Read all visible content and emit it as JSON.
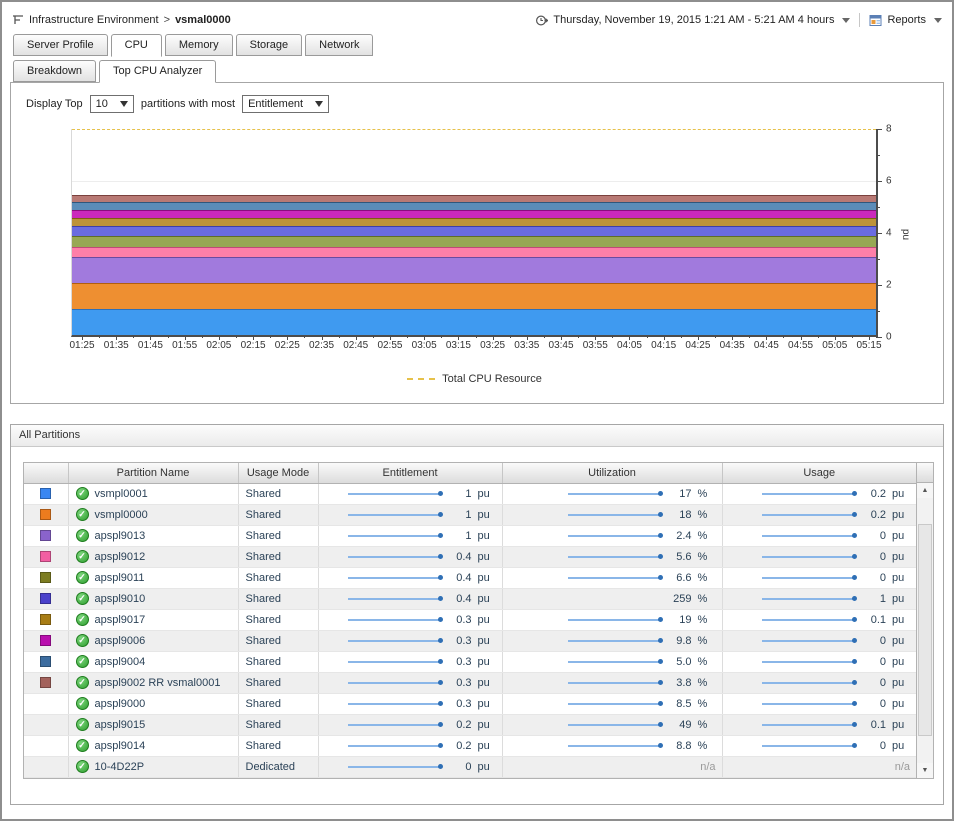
{
  "header": {
    "breadcrumb": {
      "root": "Infrastructure Environment",
      "separator": ">",
      "current": "vsmal0000"
    },
    "timerange_label": "Thursday, November 19, 2015 1:21 AM - 5:21 AM 4 hours",
    "reports_label": "Reports"
  },
  "icons": {
    "breadcrumb": "topology-icon",
    "timerange": "time-range-icon",
    "reports": "report-icon",
    "dropdown_glyph": "▼",
    "check_glyph": "✓",
    "scroll_up_glyph": "▲",
    "scroll_down_glyph": "▼"
  },
  "tabs": {
    "active": "CPU",
    "items": [
      "Server Profile",
      "CPU",
      "Memory",
      "Storage",
      "Network"
    ]
  },
  "subtabs": {
    "active": "Top CPU Analyzer",
    "items": [
      "Breakdown",
      "Top CPU Analyzer"
    ]
  },
  "controls": {
    "prefix_label": "Display Top",
    "top_count": "10",
    "middle_label": "partitions with most",
    "metric": "Entitlement"
  },
  "chart_data": {
    "type": "area",
    "stacked": true,
    "ylabel": "pu",
    "ylim": [
      0,
      8
    ],
    "yticks": [
      0,
      2,
      4,
      6,
      8
    ],
    "grid": "major-horizontal",
    "legend_position": "bottom",
    "x": [
      "01:25",
      "01:35",
      "01:45",
      "01:55",
      "02:05",
      "02:15",
      "02:25",
      "02:35",
      "02:45",
      "02:55",
      "03:05",
      "03:15",
      "03:25",
      "03:35",
      "03:45",
      "03:55",
      "04:05",
      "04:15",
      "04:25",
      "04:35",
      "04:45",
      "04:55",
      "05:05",
      "05:15"
    ],
    "reference_line": {
      "label": "Total CPU Resource",
      "value": 8,
      "style": "dashed",
      "color": "#e6c14a"
    },
    "series": [
      {
        "name": "vsmpl0001",
        "value": 1.0,
        "color": "#3f9af0",
        "edge_color": "#2d6fb8"
      },
      {
        "name": "vsmpl0000",
        "value": 1.0,
        "color": "#ee8f31",
        "edge_color": "#b05f10"
      },
      {
        "name": "apspl9013",
        "value": 1.0,
        "color": "#a17add",
        "edge_color": "#6b4aa0"
      },
      {
        "name": "apspl9012",
        "value": 0.4,
        "color": "#fe7fa9",
        "edge_color": "#c04a77"
      },
      {
        "name": "apspl9011",
        "value": 0.4,
        "color": "#97a854",
        "edge_color": "#5f6e28"
      },
      {
        "name": "apspl9010",
        "value": 0.4,
        "color": "#6a6ce0",
        "edge_color": "#3d3fa8"
      },
      {
        "name": "apspl9017",
        "value": 0.3,
        "color": "#bd9339",
        "edge_color": "#7d5f14"
      },
      {
        "name": "apspl9006",
        "value": 0.3,
        "color": "#cb29bc",
        "edge_color": "#8a0f7e"
      },
      {
        "name": "apspl9004",
        "value": 0.3,
        "color": "#5b8cb8",
        "edge_color": "#2f567c"
      },
      {
        "name": "apspl9002 RR vsmal0001",
        "value": 0.3,
        "color": "#b87974",
        "edge_color": "#7a413d"
      }
    ]
  },
  "table": {
    "title": "All Partitions",
    "columns": [
      "",
      "Partition Name",
      "Usage Mode",
      "Entitlement",
      "Utilization",
      "Usage"
    ],
    "units": {
      "entitlement": "pu",
      "utilization": "%",
      "usage": "pu"
    },
    "rows": [
      {
        "color": "#3a87f2",
        "name": "vsmpl0001",
        "mode": "Shared",
        "entitlement": "1",
        "utilization": "17",
        "usage": "0.2"
      },
      {
        "color": "#ec7c1e",
        "name": "vsmpl0000",
        "mode": "Shared",
        "entitlement": "1",
        "utilization": "18",
        "usage": "0.2"
      },
      {
        "color": "#8a63cc",
        "name": "apspl9013",
        "mode": "Shared",
        "entitlement": "1",
        "utilization": "2.4",
        "usage": "0"
      },
      {
        "color": "#f25fa2",
        "name": "apspl9012",
        "mode": "Shared",
        "entitlement": "0.4",
        "utilization": "5.6",
        "usage": "0"
      },
      {
        "color": "#7c7c21",
        "name": "apspl9011",
        "mode": "Shared",
        "entitlement": "0.4",
        "utilization": "6.6",
        "usage": "0"
      },
      {
        "color": "#4a41cb",
        "name": "apspl9010",
        "mode": "Shared",
        "entitlement": "0.4",
        "utilization": "259",
        "usage": "1",
        "utilization_spark": false
      },
      {
        "color": "#a87d15",
        "name": "apspl9017",
        "mode": "Shared",
        "entitlement": "0.3",
        "utilization": "19",
        "usage": "0.1"
      },
      {
        "color": "#b90fae",
        "name": "apspl9006",
        "mode": "Shared",
        "entitlement": "0.3",
        "utilization": "9.8",
        "usage": "0"
      },
      {
        "color": "#3c6c9f",
        "name": "apspl9004",
        "mode": "Shared",
        "entitlement": "0.3",
        "utilization": "5.0",
        "usage": "0"
      },
      {
        "color": "#a3625c",
        "name": "apspl9002 RR vsmal0001",
        "mode": "Shared",
        "entitlement": "0.3",
        "utilization": "3.8",
        "usage": "0"
      },
      {
        "color": null,
        "name": "apspl9000",
        "mode": "Shared",
        "entitlement": "0.3",
        "utilization": "8.5",
        "usage": "0"
      },
      {
        "color": null,
        "name": "apspl9015",
        "mode": "Shared",
        "entitlement": "0.2",
        "utilization": "49",
        "usage": "0.1"
      },
      {
        "color": null,
        "name": "apspl9014",
        "mode": "Shared",
        "entitlement": "0.2",
        "utilization": "8.8",
        "usage": "0"
      },
      {
        "color": null,
        "name": "10-4D22P",
        "mode": "Dedicated",
        "entitlement": "0",
        "utilization": "n/a",
        "usage": "n/a"
      }
    ]
  }
}
